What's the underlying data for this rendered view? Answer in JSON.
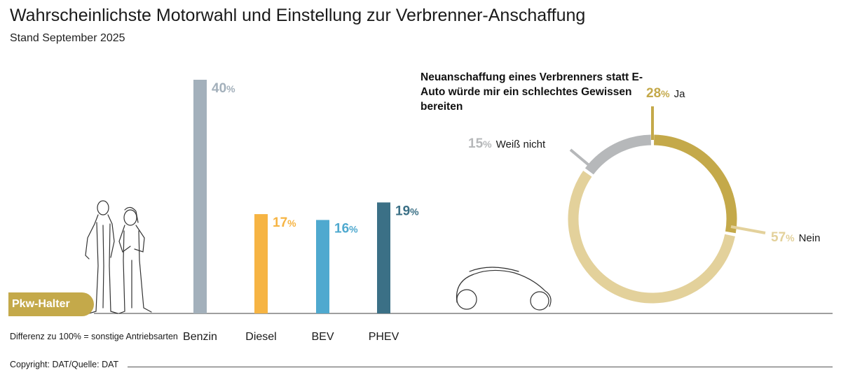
{
  "title": "Wahrscheinlichste Motorwahl und Einstellung zur Verbrenner-Anschaffung",
  "subtitle": "Stand September 2025",
  "badge": "Pkw-Halter",
  "note": "Differenz zu 100% = sonstige Antriebsarten",
  "copyright": "Copyright: DAT/Quelle: DAT",
  "chart_data": [
    {
      "type": "bar",
      "categories": [
        "Benzin",
        "Diesel",
        "BEV",
        "PHEV"
      ],
      "values": [
        40,
        17,
        16,
        19
      ],
      "unit": "%",
      "colors": [
        "#a3b0bb",
        "#f6b443",
        "#4fa9cf",
        "#3b7086"
      ],
      "grid": false,
      "legend": "none"
    },
    {
      "type": "pie",
      "title": "Neuanschaffung eines Verbrenners statt E-Auto würde mir ein schlechtes Gewissen bereiten",
      "categories": [
        "Ja",
        "Nein",
        "Weiß nicht"
      ],
      "values": [
        28,
        57,
        15
      ],
      "unit": "%",
      "colors": [
        "#c4a94a",
        "#e3d19b",
        "#b6b8ba"
      ],
      "style": "donut"
    }
  ]
}
